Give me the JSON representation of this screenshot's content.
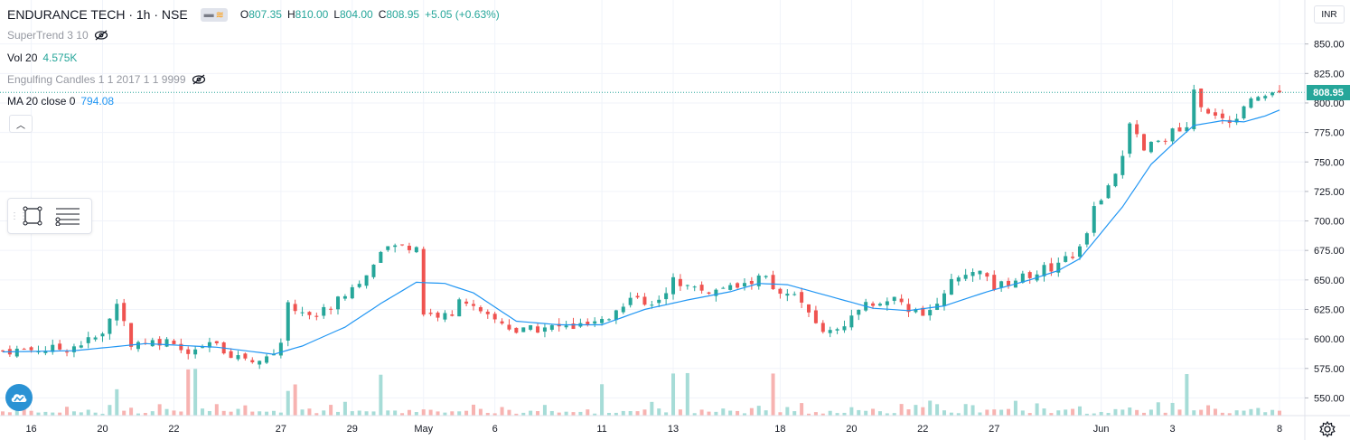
{
  "header": {
    "symbol": "ENDURANCE TECH · 1h · NSE",
    "ohlc": {
      "o_label": "O",
      "o": "807.35",
      "h_label": "H",
      "h": "810.00",
      "l_label": "L",
      "l": "804.00",
      "c_label": "C",
      "c": "808.95",
      "change": "+5.05 (+0.63%)"
    }
  },
  "indicators": {
    "supertrend": "SuperTrend 3 10",
    "vol_label": "Vol 20",
    "vol_value": "4.575K",
    "engulfing": "Engulfing Candles 1 1 2017 1 1 9999",
    "ma_label": "MA 20 close 0",
    "ma_value": "794.08"
  },
  "price_axis": {
    "currency": "INR",
    "last_price": "808.95"
  },
  "colors": {
    "up": "#26a69a",
    "down": "#ef5350",
    "ma": "#2196f3",
    "vol_up": "#a6dcd7",
    "vol_down": "#f7b3b1",
    "grid": "#f0f3fa"
  },
  "chart_data": {
    "type": "candlestick",
    "ylim": [
      535,
      862
    ],
    "y_ticks": [
      550,
      575,
      600,
      625,
      650,
      675,
      700,
      725,
      750,
      775,
      800,
      825,
      850
    ],
    "x_ticks": [
      {
        "label": "16",
        "bar": 4
      },
      {
        "label": "20",
        "bar": 14
      },
      {
        "label": "22",
        "bar": 24
      },
      {
        "label": "27",
        "bar": 39
      },
      {
        "label": "29",
        "bar": 49
      },
      {
        "label": "May",
        "bar": 59
      },
      {
        "label": "6",
        "bar": 69
      },
      {
        "label": "11",
        "bar": 84
      },
      {
        "label": "13",
        "bar": 94
      },
      {
        "label": "18",
        "bar": 109
      },
      {
        "label": "20",
        "bar": 119
      },
      {
        "label": "22",
        "bar": 129
      },
      {
        "label": "27",
        "bar": 139
      },
      {
        "label": "Jun",
        "bar": 154
      },
      {
        "label": "3",
        "bar": 164
      },
      {
        "label": "8",
        "bar": 179
      }
    ],
    "close_path": [
      [
        0,
        590
      ],
      [
        9,
        592
      ],
      [
        14,
        603
      ],
      [
        16,
        630
      ],
      [
        18,
        597
      ],
      [
        24,
        599
      ],
      [
        26,
        584
      ],
      [
        29,
        596
      ],
      [
        33,
        585
      ],
      [
        37,
        582
      ],
      [
        39,
        598
      ],
      [
        40,
        628
      ],
      [
        44,
        620
      ],
      [
        47,
        633
      ],
      [
        51,
        654
      ],
      [
        54,
        678
      ],
      [
        58,
        679
      ],
      [
        59,
        622
      ],
      [
        63,
        618
      ],
      [
        64,
        637
      ],
      [
        67,
        620
      ],
      [
        70,
        614
      ],
      [
        72,
        606
      ],
      [
        77,
        610
      ],
      [
        80,
        610
      ],
      [
        84,
        613
      ],
      [
        87,
        630
      ],
      [
        89,
        638
      ],
      [
        91,
        626
      ],
      [
        94,
        650
      ],
      [
        97,
        643
      ],
      [
        99,
        640
      ],
      [
        104,
        645
      ],
      [
        107,
        655
      ],
      [
        108,
        640
      ],
      [
        111,
        637
      ],
      [
        113,
        625
      ],
      [
        115,
        605
      ],
      [
        118,
        613
      ],
      [
        121,
        628
      ],
      [
        125,
        633
      ],
      [
        128,
        623
      ],
      [
        130,
        622
      ],
      [
        132,
        642
      ],
      [
        134,
        652
      ],
      [
        138,
        656
      ],
      [
        139,
        643
      ],
      [
        143,
        653
      ],
      [
        147,
        661
      ],
      [
        151,
        675
      ],
      [
        153,
        710
      ],
      [
        155,
        730
      ],
      [
        157,
        755
      ],
      [
        158,
        780
      ],
      [
        160,
        760
      ],
      [
        162,
        768
      ],
      [
        164,
        775
      ],
      [
        166,
        777
      ],
      [
        167,
        808
      ],
      [
        169,
        790
      ],
      [
        172,
        785
      ],
      [
        174,
        795
      ],
      [
        176,
        806
      ],
      [
        179,
        809
      ]
    ],
    "ma20_anchors": [
      [
        0,
        589
      ],
      [
        10,
        590
      ],
      [
        20,
        596
      ],
      [
        30,
        593
      ],
      [
        38,
        587
      ],
      [
        42,
        594
      ],
      [
        48,
        610
      ],
      [
        53,
        630
      ],
      [
        58,
        648
      ],
      [
        62,
        647
      ],
      [
        66,
        639
      ],
      [
        72,
        615
      ],
      [
        78,
        612
      ],
      [
        84,
        612
      ],
      [
        90,
        625
      ],
      [
        96,
        633
      ],
      [
        102,
        640
      ],
      [
        106,
        647
      ],
      [
        110,
        646
      ],
      [
        116,
        636
      ],
      [
        122,
        626
      ],
      [
        127,
        624
      ],
      [
        132,
        628
      ],
      [
        138,
        640
      ],
      [
        144,
        650
      ],
      [
        148,
        658
      ],
      [
        151,
        668
      ],
      [
        154,
        690
      ],
      [
        157,
        712
      ],
      [
        161,
        748
      ],
      [
        164,
        765
      ],
      [
        167,
        781
      ],
      [
        171,
        785
      ],
      [
        174,
        784
      ],
      [
        177,
        789
      ],
      [
        179,
        794
      ]
    ],
    "volume_spike_bars": [
      16,
      26,
      27,
      40,
      41,
      53,
      84,
      94,
      96,
      108,
      166
    ],
    "last_close": 808.95
  }
}
